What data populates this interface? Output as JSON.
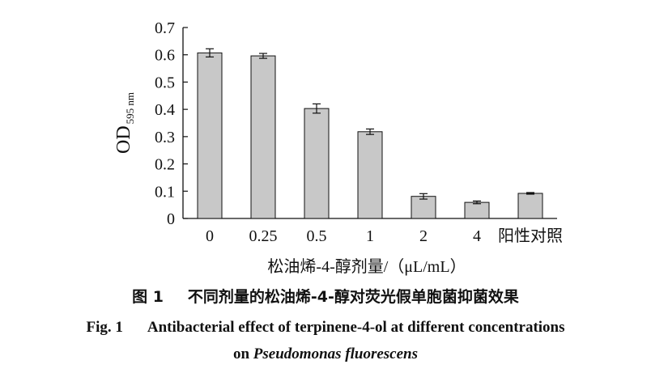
{
  "chart_data": {
    "type": "bar",
    "categories": [
      "0",
      "0.25",
      "0.5",
      "1",
      "2",
      "4",
      "阳性对照"
    ],
    "values": [
      0.607,
      0.596,
      0.403,
      0.318,
      0.081,
      0.059,
      0.092
    ],
    "errors": [
      0.015,
      0.009,
      0.017,
      0.01,
      0.01,
      0.005,
      0.003
    ],
    "xlabel": "松油烯-4-醇剂量/（μL/mL）",
    "ylabel_main": "OD",
    "ylabel_sub": "595 nm",
    "ylim": [
      0,
      0.7
    ],
    "yticks": [
      "0",
      "0.1",
      "0.2",
      "0.3",
      "0.4",
      "0.5",
      "0.6",
      "0.7"
    ],
    "bar_color": "#c8c8c8",
    "grid": false
  },
  "caption": {
    "cn_label": "图 1",
    "cn_text": "不同剂量的松油烯-4-醇对荧光假单胞菌抑菌效果",
    "en_label": "Fig. 1",
    "en_line1": "Antibacterial effect of terpinene-4-ol at different concentrations",
    "en_line2_prefix": "on",
    "en_line2_italic": "Pseudomonas fluorescens"
  }
}
